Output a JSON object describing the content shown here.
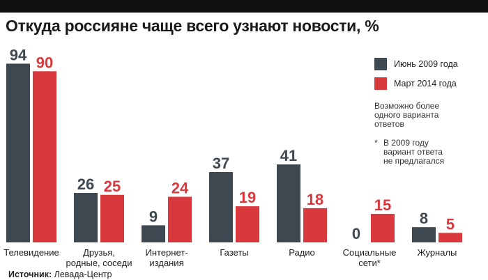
{
  "title": "Откуда россияне чаще всего узнают новости, %",
  "legend": {
    "items": [
      {
        "label": "Июнь 2009 года",
        "color": "#3d4850"
      },
      {
        "label": "Март 2014 года",
        "color": "#d9383d"
      }
    ]
  },
  "notes": {
    "multiple": "Возможно более\nодного варианта\nответов",
    "star": "*",
    "not_offered": "В 2009 году\nвариант ответа\nне предлагался"
  },
  "source": {
    "label": "Источник:",
    "text": "Левада-Центр"
  },
  "chart_data": {
    "type": "bar",
    "title": "Откуда россияне чаще всего узнают новости, %",
    "xlabel": "",
    "ylabel": "",
    "ylim": [
      0,
      100
    ],
    "grid": false,
    "legend_position": "top-right",
    "categories": [
      "Телевидение",
      "Друзья,\nродные, соседи",
      "Интернет-\nиздания",
      "Газеты",
      "Радио",
      "Социальные\nсети*",
      "Журналы"
    ],
    "series": [
      {
        "name": "Июнь 2009 года",
        "color": "#3d4850",
        "values": [
          94,
          26,
          9,
          37,
          41,
          0,
          8
        ]
      },
      {
        "name": "Март 2014 года",
        "color": "#d9383d",
        "values": [
          90,
          25,
          24,
          19,
          18,
          15,
          5
        ]
      }
    ]
  }
}
